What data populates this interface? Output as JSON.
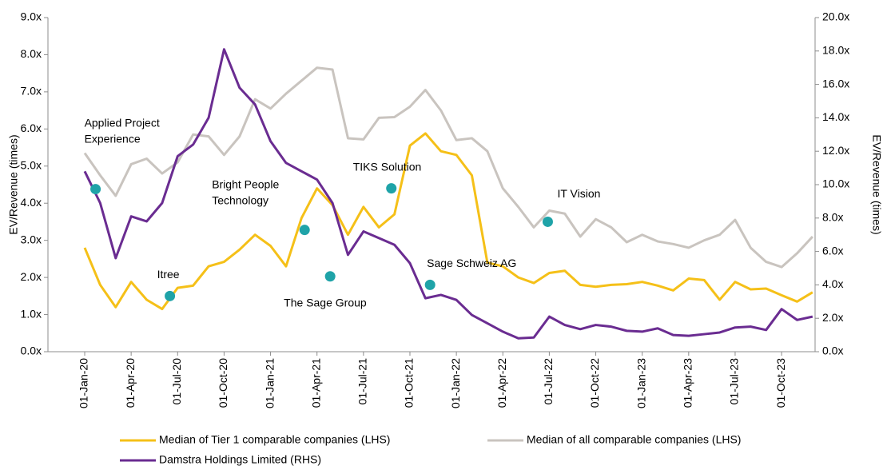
{
  "chart_data": {
    "type": "line",
    "ylabel": "EV/Revenue (times)",
    "y2label": "EV/Revenue (times)",
    "categories": [
      "01-Jan-20",
      null,
      null,
      "01-Apr-20",
      null,
      null,
      "01-Jul-20",
      null,
      null,
      "01-Oct-20",
      null,
      null,
      "01-Jan-21",
      null,
      null,
      "01-Apr-21",
      null,
      null,
      "01-Jul-21",
      null,
      null,
      "01-Oct-21",
      null,
      null,
      "01-Jan-22",
      null,
      null,
      "01-Apr-22",
      null,
      null,
      "01-Jul-22",
      null,
      null,
      "01-Oct-22",
      null,
      null,
      "01-Jan-23",
      null,
      null,
      "01-Apr-23",
      null,
      null,
      "01-Jul-23",
      null,
      null,
      "01-Oct-23",
      null,
      null
    ],
    "ylim": [
      0,
      9
    ],
    "yticks": [
      {
        "value": 0,
        "label": "0.0x"
      },
      {
        "value": 1,
        "label": "1.0x"
      },
      {
        "value": 2,
        "label": "2.0x"
      },
      {
        "value": 3,
        "label": "3.0x"
      },
      {
        "value": 4,
        "label": "4.0x"
      },
      {
        "value": 5,
        "label": "5.0x"
      },
      {
        "value": 6,
        "label": "6.0x"
      },
      {
        "value": 7,
        "label": "7.0x"
      },
      {
        "value": 8,
        "label": "8.0x"
      },
      {
        "value": 9,
        "label": "9.0x"
      }
    ],
    "y2lim": [
      0,
      20
    ],
    "y2ticks": [
      {
        "value": 0,
        "label": "0.0x"
      },
      {
        "value": 2,
        "label": "2.0x"
      },
      {
        "value": 4,
        "label": "4.0x"
      },
      {
        "value": 6,
        "label": "6.0x"
      },
      {
        "value": 8,
        "label": "8.0x"
      },
      {
        "value": 10,
        "label": "10.0x"
      },
      {
        "value": 12,
        "label": "12.0x"
      },
      {
        "value": 14,
        "label": "14.0x"
      },
      {
        "value": 16,
        "label": "16.0x"
      },
      {
        "value": 18,
        "label": "18.0x"
      },
      {
        "value": 20,
        "label": "20.0x"
      }
    ],
    "series": [
      {
        "name": "Median of Tier 1 comparable companies (LHS)",
        "color": "#f5c018",
        "values": [
          2.8,
          1.8,
          1.2,
          1.88,
          1.4,
          1.15,
          1.72,
          1.78,
          2.3,
          2.42,
          2.75,
          3.15,
          2.85,
          2.3,
          3.6,
          4.4,
          3.95,
          3.15,
          3.9,
          3.35,
          3.7,
          5.55,
          5.88,
          5.4,
          5.3,
          4.75,
          2.4,
          2.3,
          2.0,
          1.85,
          2.12,
          2.18,
          1.8,
          1.75,
          1.8,
          1.82,
          1.88,
          1.78,
          1.65,
          1.97,
          1.93,
          1.4,
          1.88,
          1.68,
          1.7,
          1.52,
          1.35,
          1.6
        ]
      },
      {
        "name": "Median of all comparable companies (LHS)",
        "color": "#c9c4bf",
        "values": [
          5.35,
          4.75,
          4.2,
          5.05,
          5.2,
          4.8,
          5.1,
          5.85,
          5.8,
          5.3,
          5.8,
          6.8,
          6.55,
          6.95,
          7.3,
          7.65,
          7.6,
          5.75,
          5.72,
          6.3,
          6.32,
          6.6,
          7.05,
          6.5,
          5.7,
          5.75,
          5.4,
          4.4,
          3.9,
          3.35,
          3.8,
          3.72,
          3.1,
          3.57,
          3.35,
          2.95,
          3.15,
          2.97,
          2.9,
          2.8,
          3.0,
          3.15,
          3.55,
          2.8,
          2.42,
          2.28,
          2.65,
          3.1
        ]
      },
      {
        "name": "Damstra Holdings Limited (RHS)",
        "color": "#6a2c91",
        "axis": "y2",
        "values": [
          10.8,
          8.9,
          5.6,
          8.1,
          7.8,
          8.9,
          11.7,
          12.4,
          14.0,
          18.1,
          15.8,
          14.8,
          12.6,
          11.3,
          10.8,
          10.3,
          8.9,
          5.8,
          7.2,
          6.8,
          6.4,
          5.3,
          3.2,
          3.4,
          3.1,
          2.2,
          1.7,
          1.2,
          0.8,
          0.85,
          2.1,
          1.6,
          1.35,
          1.6,
          1.5,
          1.25,
          1.2,
          1.4,
          1.0,
          0.95,
          1.05,
          1.15,
          1.45,
          1.5,
          1.3,
          2.55,
          1.9,
          2.1
        ]
      }
    ],
    "deals": {
      "color": "#1fa3a8",
      "points": [
        {
          "label": [
            "Applied Project",
            "Experience"
          ],
          "x": 0.7,
          "y": 4.38
        },
        {
          "label": [
            "Itree"
          ],
          "x": 5.5,
          "y": 1.5
        },
        {
          "label": [
            "Bright People",
            "Technology"
          ],
          "x": 14.2,
          "y": 3.28
        },
        {
          "label": [
            "The Sage Group"
          ],
          "x": 15.85,
          "y": 2.03
        },
        {
          "label": [
            "TIKS Solution"
          ],
          "x": 19.8,
          "y": 4.4
        },
        {
          "label": [
            "Sage Schweiz AG"
          ],
          "x": 22.3,
          "y": 1.8
        },
        {
          "label": [
            "IT Vision"
          ],
          "x": 29.9,
          "y": 3.5
        }
      ]
    }
  }
}
